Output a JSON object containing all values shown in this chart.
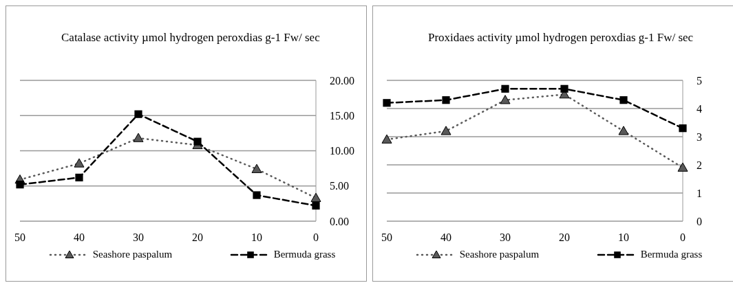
{
  "chart_data": [
    {
      "type": "line",
      "title": "Catalase activity µmol hydrogen peroxdias g-1 Fw/ sec",
      "categories": [
        "50",
        "40",
        "30",
        "20",
        "10",
        "0"
      ],
      "series": [
        {
          "name": "Seashore paspalum",
          "color": "#595959",
          "values": [
            5.9,
            8.2,
            11.8,
            10.8,
            7.4,
            3.3
          ],
          "marker": "triangle",
          "line_style": "dotted"
        },
        {
          "name": "Bermuda grass",
          "color": "#000000",
          "values": [
            5.2,
            6.2,
            15.2,
            11.3,
            3.7,
            2.2
          ],
          "marker": "square",
          "line_style": "dashed"
        }
      ],
      "ylim": [
        0,
        20
      ],
      "yticks": [
        {
          "value": 0,
          "label": "0.00"
        },
        {
          "value": 5,
          "label": "5.00"
        },
        {
          "value": 10,
          "label": "10.00"
        },
        {
          "value": 15,
          "label": "15.00"
        },
        {
          "value": 20,
          "label": "20.00"
        }
      ],
      "grid": "y",
      "legend": "bottom"
    },
    {
      "type": "line",
      "title": "Proxidaes  activity µmol hydrogen peroxdias g-1 Fw/ sec",
      "categories": [
        "50",
        "40",
        "30",
        "20",
        "10",
        "0"
      ],
      "series": [
        {
          "name": "Seashore paspalum",
          "color": "#595959",
          "values": [
            2.9,
            3.2,
            4.3,
            4.5,
            3.2,
            1.9
          ],
          "marker": "triangle",
          "line_style": "dotted"
        },
        {
          "name": "Bermuda grass",
          "color": "#000000",
          "values": [
            4.2,
            4.3,
            4.7,
            4.7,
            4.3,
            3.3
          ],
          "marker": "square",
          "line_style": "dashed"
        }
      ],
      "ylim": [
        0,
        5
      ],
      "yticks": [
        0,
        1,
        2,
        3,
        4,
        5
      ],
      "grid": "y",
      "legend": "bottom"
    }
  ]
}
